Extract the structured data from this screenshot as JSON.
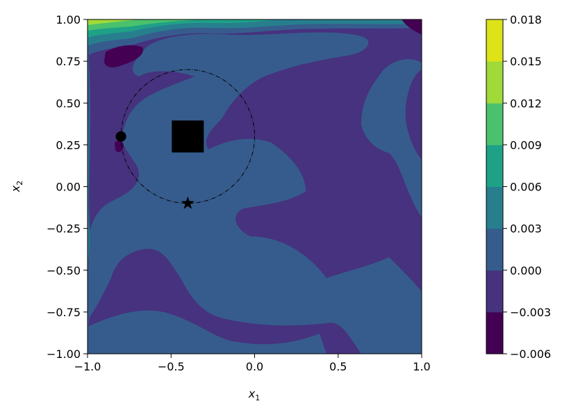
{
  "chart_data": {
    "type": "contourf",
    "xlabel": "x",
    "xlabel_sub": "1",
    "ylabel": "x",
    "ylabel_sub": "2",
    "xlim": [
      -1.0,
      1.0
    ],
    "ylim": [
      -1.0,
      1.0
    ],
    "xticks": [
      -1.0,
      -0.5,
      0.0,
      0.5,
      1.0
    ],
    "xtick_labels": [
      "−1.0",
      "−0.5",
      "0.0",
      "0.5",
      "1.0"
    ],
    "yticks": [
      1.0,
      0.75,
      0.5,
      0.25,
      0.0,
      -0.25,
      -0.5,
      -0.75,
      -1.0
    ],
    "ytick_labels": [
      "1.00",
      "0.75",
      "0.50",
      "0.25",
      "0.00",
      "−0.25",
      "−0.50",
      "−0.75",
      "−1.00"
    ],
    "grid": false,
    "colorbar": {
      "levels": [
        -0.006,
        -0.003,
        0.0,
        0.003,
        0.006,
        0.009,
        0.012,
        0.015,
        0.018
      ],
      "tick_labels": [
        "0.018",
        "0.015",
        "0.012",
        "0.009",
        "0.006",
        "0.003",
        "0.000",
        "−0.003",
        "−0.006"
      ],
      "colors": [
        "#440154",
        "#46327e",
        "#365c8d",
        "#277f8e",
        "#1fa187",
        "#4ac16d",
        "#a0da39",
        "#dde318"
      ]
    },
    "markers": [
      {
        "shape": "square",
        "x": -0.4,
        "y": 0.3
      },
      {
        "shape": "circle",
        "x": -0.8,
        "y": 0.3
      },
      {
        "shape": "star",
        "x": -0.4,
        "y": -0.1
      }
    ],
    "circle": {
      "center": [
        -0.4,
        0.3
      ],
      "radius": 0.4,
      "style": "dash-dot"
    }
  }
}
